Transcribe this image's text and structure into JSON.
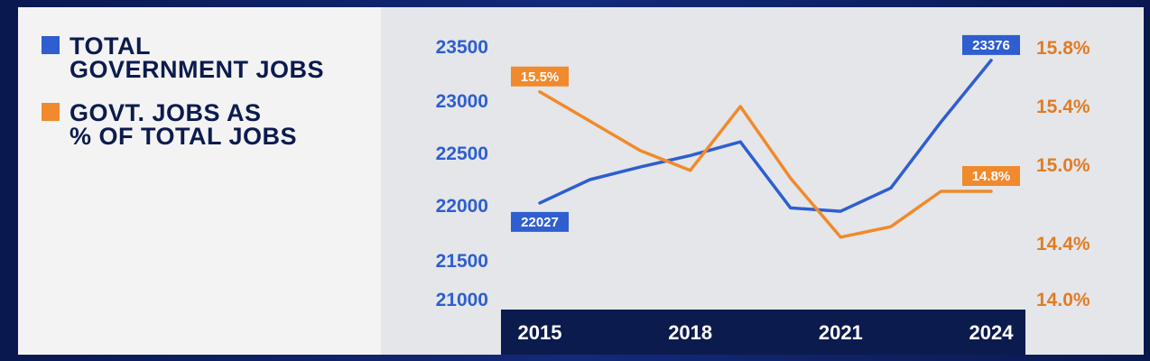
{
  "legend": {
    "items": [
      {
        "line1": "TOTAL",
        "line2": "GOVERNMENT JOBS",
        "color": "#2e5ecf"
      },
      {
        "line1": "GOVT. JOBS AS",
        "line2": "% OF TOTAL JOBS",
        "color": "#f08a2c"
      }
    ]
  },
  "colors": {
    "blue_series": "#2e5ecf",
    "orange_series": "#f08a2c",
    "axis_band": "#0c1b4d",
    "left_tick_text": "#2e5ecf",
    "right_tick_text": "#e07c25"
  },
  "chart_data": {
    "type": "line",
    "x": [
      2015,
      2016,
      2017,
      2018,
      2019,
      2020,
      2021,
      2022,
      2023,
      2024
    ],
    "x_ticks": [
      "2015",
      "2018",
      "2021",
      "2024"
    ],
    "y_left_ticks": [
      "23500",
      "23000",
      "22500",
      "22000",
      "21500",
      "21000"
    ],
    "y_left_range": [
      21000,
      23500
    ],
    "y_right_ticks": [
      "15.8%",
      "15.4%",
      "15.0%",
      "14.4%",
      "14.0%"
    ],
    "y_right_range": [
      14.0,
      15.8
    ],
    "series": [
      {
        "name": "TOTAL GOVERNMENT JOBS",
        "axis": "left",
        "values": [
          22027,
          22250,
          22370,
          22480,
          22610,
          21980,
          21950,
          22170,
          22800,
          23376
        ]
      },
      {
        "name": "GOVT. JOBS AS % OF TOTAL JOBS",
        "axis": "right",
        "values": [
          15.5,
          15.3,
          15.1,
          14.96,
          15.4,
          14.9,
          14.45,
          14.53,
          14.8,
          14.8
        ]
      }
    ],
    "annotations": [
      {
        "series": 0,
        "index": 0,
        "text": "22027",
        "where": "below"
      },
      {
        "series": 0,
        "index": 9,
        "text": "23376",
        "where": "above"
      },
      {
        "series": 1,
        "index": 0,
        "text": "15.5%",
        "where": "above"
      },
      {
        "series": 1,
        "index": 9,
        "text": "14.8%",
        "where": "above"
      }
    ]
  }
}
